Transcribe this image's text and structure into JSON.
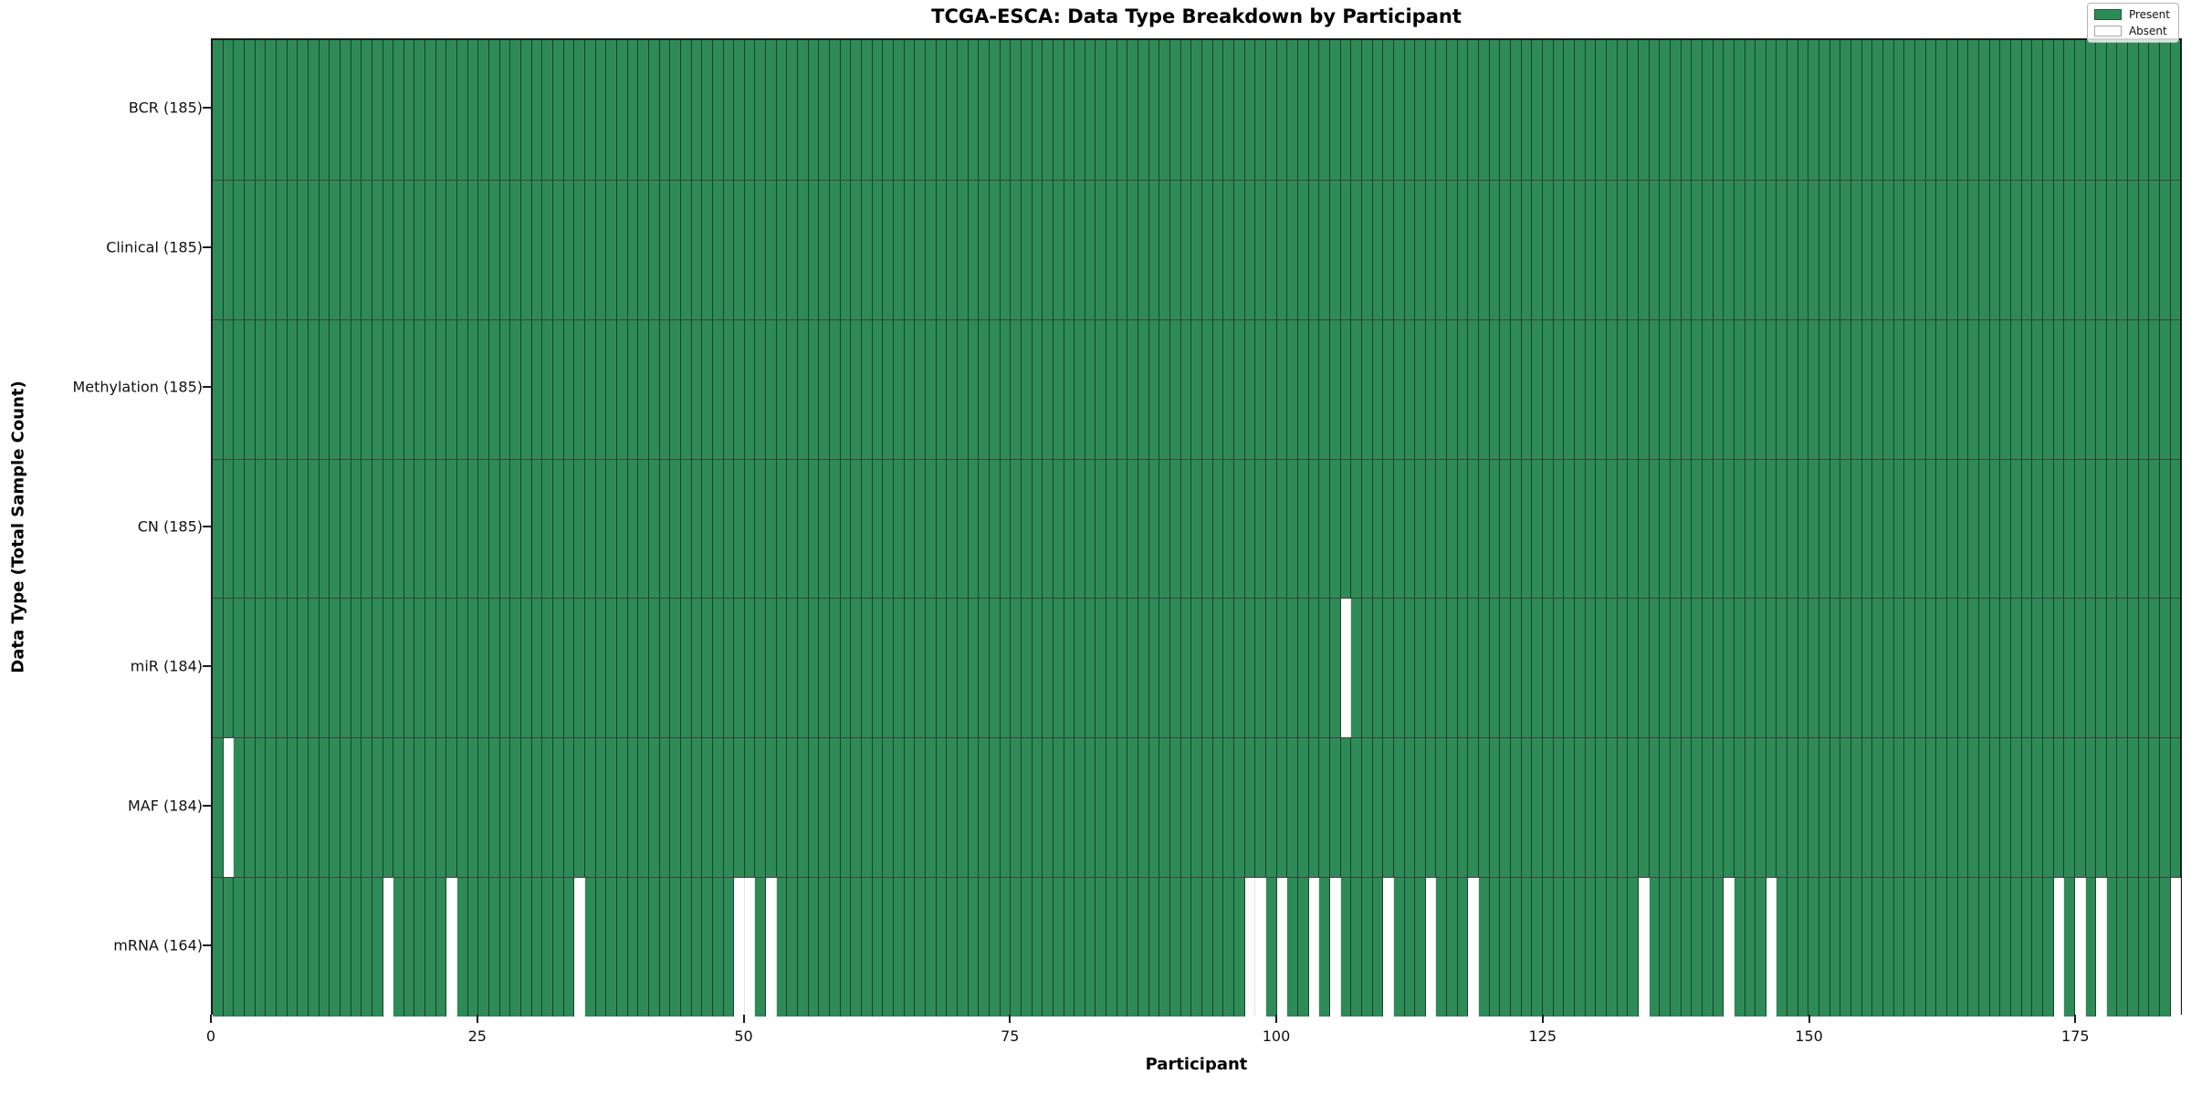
{
  "figure": {
    "title": "TCGA-ESCA: Data Type Breakdown by Participant",
    "xlabel": "Participant",
    "ylabel": "Data Type (Total Sample Count)"
  },
  "legend": {
    "position": "upper right",
    "entries": [
      {
        "label": "Present",
        "color": "#2e8b57"
      },
      {
        "label": "Absent",
        "color": "#ffffff"
      }
    ]
  },
  "chart_data": {
    "type": "heatmap",
    "title": "TCGA-ESCA: Data Type Breakdown by Participant",
    "xlabel": "Participant",
    "ylabel": "Data Type (Total Sample Count)",
    "n_participants": 185,
    "xlim": [
      0,
      185
    ],
    "x_ticks": [
      0,
      25,
      50,
      75,
      100,
      125,
      150,
      175
    ],
    "grid": "cell-edges",
    "colors": {
      "present": "#2e8b57",
      "absent": "#ffffff",
      "cell_edge": "rgba(0,0,0,0.52)",
      "row_separator": "rgba(0,0,0,0.75)"
    },
    "rows": [
      {
        "name": "BCR",
        "label": "BCR (185)",
        "total": 185,
        "absent_participants": []
      },
      {
        "name": "Clinical",
        "label": "Clinical (185)",
        "total": 185,
        "absent_participants": []
      },
      {
        "name": "Methylation",
        "label": "Methylation (185)",
        "total": 185,
        "absent_participants": []
      },
      {
        "name": "CN",
        "label": "CN (185)",
        "total": 185,
        "absent_participants": []
      },
      {
        "name": "miR",
        "label": "miR (184)",
        "total": 184,
        "absent_participants": [
          106
        ]
      },
      {
        "name": "MAF",
        "label": "MAF (184)",
        "total": 184,
        "absent_participants": [
          1
        ]
      },
      {
        "name": "mRNA",
        "label": "mRNA (164)",
        "total": 164,
        "absent_participants": [
          16,
          22,
          34,
          49,
          50,
          52,
          97,
          98,
          100,
          103,
          105,
          110,
          114,
          118,
          134,
          142,
          146,
          173,
          175,
          177,
          184
        ]
      }
    ]
  }
}
